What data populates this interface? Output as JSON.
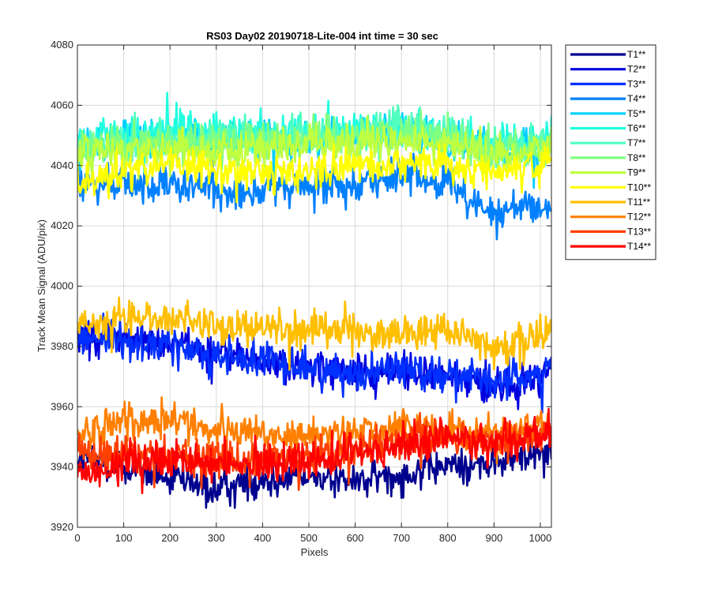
{
  "chart_data": {
    "type": "line",
    "title": "RS03 Day02 20190718-Lite-004 int time = 30 sec",
    "xlabel": "Pixels",
    "ylabel": "Track Mean Signal (ADU/pix)",
    "xlim": [
      0,
      1024
    ],
    "ylim": [
      3920,
      4080
    ],
    "xticks": [
      0,
      100,
      200,
      300,
      400,
      500,
      600,
      700,
      800,
      900,
      1000
    ],
    "yticks": [
      3920,
      3940,
      3960,
      3980,
      4000,
      4020,
      4040,
      4060,
      4080
    ],
    "grid": true,
    "legend_position": "outside-right",
    "noise_amplitude": 5,
    "x_knots": [
      0,
      100,
      200,
      300,
      400,
      500,
      600,
      700,
      800,
      900,
      1000,
      1024
    ],
    "series": [
      {
        "name": "T1**",
        "color": "#00008f",
        "trend": [
          3943,
          3940,
          3936,
          3932,
          3936,
          3937,
          3935,
          3938,
          3940,
          3941,
          3945,
          3946
        ]
      },
      {
        "name": "T2**",
        "color": "#0000df",
        "trend": [
          3984,
          3983,
          3981,
          3978,
          3975,
          3973,
          3971,
          3972,
          3970,
          3966,
          3970,
          3974
        ]
      },
      {
        "name": "T3**",
        "color": "#0030ff",
        "trend": [
          3983,
          3982,
          3980,
          3977,
          3975,
          3973,
          3971,
          3973,
          3971,
          3968,
          3971,
          3975
        ]
      },
      {
        "name": "T4**",
        "color": "#0080ff",
        "trend": [
          4033,
          4034,
          4033,
          4032,
          4032,
          4033,
          4035,
          4036,
          4034,
          4024,
          4026,
          4027
        ]
      },
      {
        "name": "T5**",
        "color": "#00cfff",
        "trend": [
          4046,
          4048,
          4049,
          4048,
          4048,
          4049,
          4050,
          4050,
          4049,
          4045,
          4047,
          4048
        ]
      },
      {
        "name": "T6**",
        "color": "#20ffdf",
        "trend": [
          4048,
          4050,
          4051,
          4050,
          4050,
          4051,
          4052,
          4052,
          4051,
          4047,
          4049,
          4050
        ]
      },
      {
        "name": "T7**",
        "color": "#50ffbf",
        "trend": [
          4046,
          4048,
          4049,
          4049,
          4049,
          4050,
          4051,
          4052,
          4050,
          4046,
          4048,
          4049
        ]
      },
      {
        "name": "T8**",
        "color": "#80ff80",
        "trend": [
          4045,
          4047,
          4048,
          4047,
          4048,
          4049,
          4050,
          4050,
          4049,
          4045,
          4047,
          4048
        ]
      },
      {
        "name": "T9**",
        "color": "#bfff40",
        "trend": [
          4043,
          4045,
          4046,
          4045,
          4046,
          4047,
          4048,
          4048,
          4047,
          4043,
          4045,
          4046
        ]
      },
      {
        "name": "T10**",
        "color": "#ffff00",
        "trend": [
          4034,
          4038,
          4041,
          4039,
          4037,
          4038,
          4040,
          4041,
          4040,
          4038,
          4040,
          4042
        ]
      },
      {
        "name": "T11**",
        "color": "#ffbf00",
        "trend": [
          3988,
          3989,
          3990,
          3987,
          3986,
          3986,
          3985,
          3984,
          3986,
          3980,
          3983,
          3986
        ]
      },
      {
        "name": "T12**",
        "color": "#ff8000",
        "trend": [
          3951,
          3954,
          3956,
          3953,
          3950,
          3950,
          3952,
          3953,
          3953,
          3950,
          3954,
          3955
        ]
      },
      {
        "name": "T13**",
        "color": "#ff4000",
        "trend": [
          3944,
          3944,
          3944,
          3943,
          3943,
          3944,
          3945,
          3948,
          3950,
          3948,
          3950,
          3950
        ]
      },
      {
        "name": "T14**",
        "color": "#ff0000",
        "trend": [
          3938,
          3941,
          3943,
          3942,
          3941,
          3942,
          3944,
          3947,
          3950,
          3947,
          3950,
          3952
        ]
      }
    ]
  }
}
